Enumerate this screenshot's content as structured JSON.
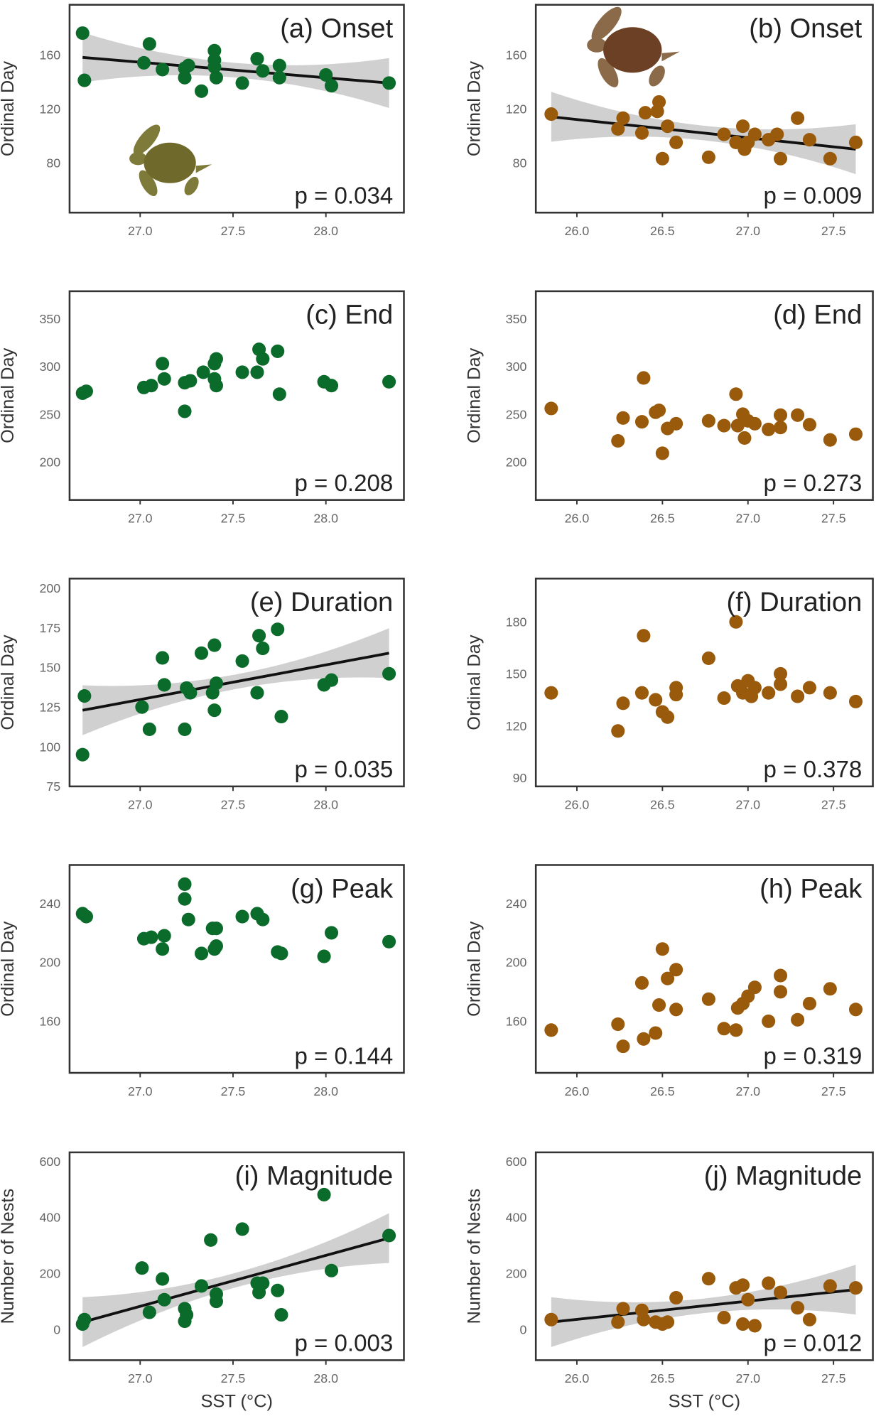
{
  "colors": {
    "green": "#0b6b2a",
    "brown": "#9a5a0c",
    "band": "#c8c8c8",
    "line": "#111111"
  },
  "chart_data": [
    {
      "type": "scatter",
      "title": "(a) Onset",
      "p_label": "p = 0.034",
      "ylabel": "Ordinal Day",
      "xlabel": "",
      "series_color": "green",
      "xlim": [
        26.62,
        28.42
      ],
      "ylim": [
        43,
        197
      ],
      "xticks": [
        "27.0",
        "27.5",
        "28.0"
      ],
      "yticks": [
        "80",
        "120",
        "160"
      ],
      "trend": [
        [
          26.69,
          158
        ],
        [
          28.34,
          139
        ]
      ],
      "icon": "green-turtle",
      "points": [
        [
          26.69,
          176
        ],
        [
          26.7,
          141
        ],
        [
          27.05,
          168
        ],
        [
          27.02,
          154
        ],
        [
          27.12,
          149
        ],
        [
          27.24,
          150
        ],
        [
          27.24,
          143
        ],
        [
          27.26,
          152
        ],
        [
          27.33,
          133
        ],
        [
          27.4,
          163
        ],
        [
          27.4,
          156
        ],
        [
          27.4,
          151
        ],
        [
          27.41,
          143
        ],
        [
          27.55,
          139
        ],
        [
          27.63,
          157
        ],
        [
          27.66,
          148
        ],
        [
          27.75,
          152
        ],
        [
          27.75,
          143
        ],
        [
          28.0,
          145
        ],
        [
          28.03,
          137
        ],
        [
          28.34,
          139
        ]
      ]
    },
    {
      "type": "scatter",
      "title": "(b) Onset",
      "p_label": "p = 0.009",
      "ylabel": "Ordinal Day",
      "xlabel": "",
      "series_color": "brown",
      "xlim": [
        25.76,
        27.73
      ],
      "ylim": [
        43,
        197
      ],
      "xticks": [
        "26.0",
        "26.5",
        "27.0",
        "27.5"
      ],
      "yticks": [
        "80",
        "120",
        "160"
      ],
      "trend": [
        [
          25.85,
          114
        ],
        [
          27.63,
          90
        ]
      ],
      "icon": "loggerhead-turtle",
      "points": [
        [
          25.85,
          116
        ],
        [
          26.24,
          105
        ],
        [
          26.27,
          113
        ],
        [
          26.38,
          102
        ],
        [
          26.4,
          117
        ],
        [
          26.47,
          118
        ],
        [
          26.48,
          125
        ],
        [
          26.5,
          83
        ],
        [
          26.53,
          107
        ],
        [
          26.58,
          95
        ],
        [
          26.77,
          84
        ],
        [
          26.86,
          101
        ],
        [
          26.93,
          95
        ],
        [
          26.97,
          107
        ],
        [
          26.98,
          90
        ],
        [
          27.0,
          95
        ],
        [
          27.04,
          101
        ],
        [
          27.12,
          97
        ],
        [
          27.19,
          83
        ],
        [
          27.17,
          101
        ],
        [
          27.29,
          113
        ],
        [
          27.36,
          97
        ],
        [
          27.48,
          83
        ],
        [
          27.63,
          95
        ]
      ]
    },
    {
      "type": "scatter",
      "title": "(c) End",
      "p_label": "p = 0.208",
      "ylabel": "Ordinal Day",
      "xlabel": "",
      "series_color": "green",
      "xlim": [
        26.62,
        28.42
      ],
      "ylim": [
        160,
        379
      ],
      "xticks": [
        "27.0",
        "27.5",
        "28.0"
      ],
      "yticks": [
        "200",
        "250",
        "300",
        "350"
      ],
      "trend": null,
      "points": [
        [
          26.69,
          272
        ],
        [
          26.71,
          274
        ],
        [
          27.02,
          278
        ],
        [
          27.06,
          280
        ],
        [
          27.12,
          303
        ],
        [
          27.13,
          287
        ],
        [
          27.24,
          283
        ],
        [
          27.24,
          253
        ],
        [
          27.27,
          285
        ],
        [
          27.34,
          294
        ],
        [
          27.4,
          287
        ],
        [
          27.4,
          303
        ],
        [
          27.41,
          308
        ],
        [
          27.41,
          280
        ],
        [
          27.55,
          294
        ],
        [
          27.63,
          294
        ],
        [
          27.64,
          318
        ],
        [
          27.66,
          308
        ],
        [
          27.74,
          316
        ],
        [
          27.75,
          271
        ],
        [
          27.99,
          284
        ],
        [
          28.03,
          280
        ],
        [
          28.34,
          284
        ]
      ]
    },
    {
      "type": "scatter",
      "title": "(d) End",
      "p_label": "p = 0.273",
      "ylabel": "Ordinal Day",
      "xlabel": "",
      "series_color": "brown",
      "xlim": [
        25.76,
        27.73
      ],
      "ylim": [
        160,
        379
      ],
      "xticks": [
        "26.0",
        "26.5",
        "27.0",
        "27.5"
      ],
      "yticks": [
        "200",
        "250",
        "300",
        "350"
      ],
      "trend": null,
      "points": [
        [
          25.85,
          256
        ],
        [
          26.24,
          222
        ],
        [
          26.27,
          246
        ],
        [
          26.38,
          242
        ],
        [
          26.39,
          288
        ],
        [
          26.46,
          252
        ],
        [
          26.48,
          254
        ],
        [
          26.5,
          209
        ],
        [
          26.53,
          235
        ],
        [
          26.58,
          240
        ],
        [
          26.77,
          243
        ],
        [
          26.86,
          238
        ],
        [
          26.93,
          271
        ],
        [
          26.94,
          238
        ],
        [
          26.97,
          250
        ],
        [
          26.98,
          225
        ],
        [
          27.0,
          243
        ],
        [
          27.04,
          240
        ],
        [
          27.12,
          234
        ],
        [
          27.19,
          249
        ],
        [
          27.19,
          236
        ],
        [
          27.29,
          249
        ],
        [
          27.36,
          239
        ],
        [
          27.48,
          223
        ],
        [
          27.63,
          229
        ]
      ]
    },
    {
      "type": "scatter",
      "title": "(e) Duration",
      "p_label": "p = 0.035",
      "ylabel": "Ordinal Day",
      "xlabel": "",
      "series_color": "green",
      "xlim": [
        26.62,
        28.42
      ],
      "ylim": [
        75,
        206
      ],
      "xticks": [
        "27.0",
        "27.5",
        "28.0"
      ],
      "yticks": [
        "75",
        "100",
        "125",
        "150",
        "175",
        "200"
      ],
      "trend": [
        [
          26.69,
          123
        ],
        [
          28.34,
          159
        ]
      ],
      "points": [
        [
          26.69,
          95
        ],
        [
          26.7,
          132
        ],
        [
          27.01,
          125
        ],
        [
          27.05,
          111
        ],
        [
          27.12,
          156
        ],
        [
          27.13,
          139
        ],
        [
          27.24,
          111
        ],
        [
          27.25,
          137
        ],
        [
          27.27,
          134
        ],
        [
          27.33,
          159
        ],
        [
          27.4,
          164
        ],
        [
          27.39,
          134
        ],
        [
          27.41,
          140
        ],
        [
          27.4,
          123
        ],
        [
          27.55,
          154
        ],
        [
          27.63,
          134
        ],
        [
          27.64,
          170
        ],
        [
          27.66,
          162
        ],
        [
          27.74,
          174
        ],
        [
          27.76,
          119
        ],
        [
          27.99,
          139
        ],
        [
          28.03,
          142
        ],
        [
          28.34,
          146
        ]
      ]
    },
    {
      "type": "scatter",
      "title": "(f) Duration",
      "p_label": "p = 0.378",
      "ylabel": "Ordinal Day",
      "xlabel": "",
      "series_color": "brown",
      "xlim": [
        25.76,
        27.73
      ],
      "ylim": [
        85,
        205
      ],
      "xticks": [
        "26.0",
        "26.5",
        "27.0",
        "27.5"
      ],
      "yticks": [
        "90",
        "120",
        "150",
        "180"
      ],
      "trend": null,
      "points": [
        [
          25.85,
          139
        ],
        [
          26.24,
          117
        ],
        [
          26.27,
          133
        ],
        [
          26.38,
          139
        ],
        [
          26.39,
          172
        ],
        [
          26.46,
          135
        ],
        [
          26.5,
          128
        ],
        [
          26.53,
          125
        ],
        [
          26.58,
          142
        ],
        [
          26.58,
          138
        ],
        [
          26.77,
          159
        ],
        [
          26.86,
          136
        ],
        [
          26.93,
          180
        ],
        [
          26.94,
          143
        ],
        [
          26.97,
          139
        ],
        [
          27.0,
          146
        ],
        [
          27.02,
          137
        ],
        [
          27.04,
          142
        ],
        [
          27.12,
          139
        ],
        [
          27.19,
          150
        ],
        [
          27.19,
          144
        ],
        [
          27.29,
          137
        ],
        [
          27.36,
          142
        ],
        [
          27.48,
          139
        ],
        [
          27.63,
          134
        ]
      ]
    },
    {
      "type": "scatter",
      "title": "(g) Peak",
      "p_label": "p = 0.144",
      "ylabel": "Ordinal Day",
      "xlabel": "",
      "series_color": "green",
      "xlim": [
        26.62,
        28.42
      ],
      "ylim": [
        125,
        266
      ],
      "xticks": [
        "27.0",
        "27.5",
        "28.0"
      ],
      "yticks": [
        "160",
        "200",
        "240"
      ],
      "trend": null,
      "points": [
        [
          26.69,
          233
        ],
        [
          26.71,
          231
        ],
        [
          27.02,
          216
        ],
        [
          27.06,
          217
        ],
        [
          27.12,
          209
        ],
        [
          27.13,
          218
        ],
        [
          27.24,
          253
        ],
        [
          27.24,
          243
        ],
        [
          27.26,
          229
        ],
        [
          27.33,
          206
        ],
        [
          27.39,
          223
        ],
        [
          27.4,
          209
        ],
        [
          27.41,
          223
        ],
        [
          27.41,
          211
        ],
        [
          27.55,
          231
        ],
        [
          27.63,
          233
        ],
        [
          27.66,
          229
        ],
        [
          27.74,
          207
        ],
        [
          27.76,
          206
        ],
        [
          27.99,
          204
        ],
        [
          28.03,
          220
        ],
        [
          28.34,
          214
        ]
      ]
    },
    {
      "type": "scatter",
      "title": "(h) Peak",
      "p_label": "p = 0.319",
      "ylabel": "Ordinal Day",
      "xlabel": "",
      "series_color": "brown",
      "xlim": [
        25.76,
        27.73
      ],
      "ylim": [
        125,
        266
      ],
      "xticks": [
        "26.0",
        "26.5",
        "27.0",
        "27.5"
      ],
      "yticks": [
        "160",
        "200",
        "240"
      ],
      "trend": null,
      "points": [
        [
          25.85,
          154
        ],
        [
          26.24,
          158
        ],
        [
          26.27,
          143
        ],
        [
          26.38,
          186
        ],
        [
          26.39,
          148
        ],
        [
          26.46,
          152
        ],
        [
          26.5,
          209
        ],
        [
          26.53,
          189
        ],
        [
          26.58,
          195
        ],
        [
          26.58,
          168
        ],
        [
          26.48,
          171
        ],
        [
          26.77,
          175
        ],
        [
          26.86,
          155
        ],
        [
          26.93,
          154
        ],
        [
          26.94,
          169
        ],
        [
          26.97,
          172
        ],
        [
          27.0,
          177
        ],
        [
          27.04,
          183
        ],
        [
          27.12,
          160
        ],
        [
          27.19,
          191
        ],
        [
          27.19,
          180
        ],
        [
          27.29,
          161
        ],
        [
          27.36,
          172
        ],
        [
          27.48,
          182
        ],
        [
          27.63,
          168
        ]
      ]
    },
    {
      "type": "scatter",
      "title": "(i) Magnitude",
      "p_label": "p = 0.003",
      "ylabel": "Number of Nests",
      "xlabel": "SST (°C)",
      "series_color": "green",
      "xlim": [
        26.62,
        28.42
      ],
      "ylim": [
        -110,
        632
      ],
      "xticks": [
        "27.0",
        "27.5",
        "28.0"
      ],
      "yticks": [
        "0",
        "200",
        "400",
        "600"
      ],
      "trend": [
        [
          26.69,
          26
        ],
        [
          28.34,
          326
        ]
      ],
      "points": [
        [
          26.69,
          19
        ],
        [
          26.7,
          35
        ],
        [
          27.01,
          219
        ],
        [
          27.05,
          61
        ],
        [
          27.12,
          180
        ],
        [
          27.13,
          106
        ],
        [
          27.24,
          74
        ],
        [
          27.24,
          29
        ],
        [
          27.25,
          52
        ],
        [
          27.33,
          155
        ],
        [
          27.38,
          319
        ],
        [
          27.41,
          126
        ],
        [
          27.41,
          100
        ],
        [
          27.55,
          358
        ],
        [
          27.63,
          165
        ],
        [
          27.64,
          132
        ],
        [
          27.66,
          165
        ],
        [
          27.74,
          139
        ],
        [
          27.76,
          52
        ],
        [
          27.99,
          481
        ],
        [
          28.03,
          210
        ],
        [
          28.34,
          335
        ]
      ]
    },
    {
      "type": "scatter",
      "title": "(j) Magnitude",
      "p_label": "p = 0.012",
      "ylabel": "Number of Nests",
      "xlabel": "SST (°C)",
      "series_color": "brown",
      "xlim": [
        25.76,
        27.73
      ],
      "ylim": [
        -110,
        632
      ],
      "xticks": [
        "26.0",
        "26.5",
        "27.0",
        "27.5"
      ],
      "yticks": [
        "0",
        "200",
        "400",
        "600"
      ],
      "trend": [
        [
          25.85,
          26
        ],
        [
          27.63,
          142
        ]
      ],
      "points": [
        [
          25.85,
          35
        ],
        [
          26.24,
          26
        ],
        [
          26.27,
          74
        ],
        [
          26.38,
          68
        ],
        [
          26.39,
          35
        ],
        [
          26.46,
          26
        ],
        [
          26.5,
          19
        ],
        [
          26.53,
          26
        ],
        [
          26.58,
          113
        ],
        [
          26.77,
          181
        ],
        [
          26.86,
          42
        ],
        [
          26.93,
          148
        ],
        [
          26.97,
          158
        ],
        [
          26.97,
          19
        ],
        [
          27.0,
          106
        ],
        [
          27.04,
          13
        ],
        [
          27.12,
          165
        ],
        [
          27.19,
          132
        ],
        [
          27.29,
          77
        ],
        [
          27.36,
          35
        ],
        [
          27.48,
          155
        ],
        [
          27.63,
          148
        ]
      ]
    }
  ]
}
